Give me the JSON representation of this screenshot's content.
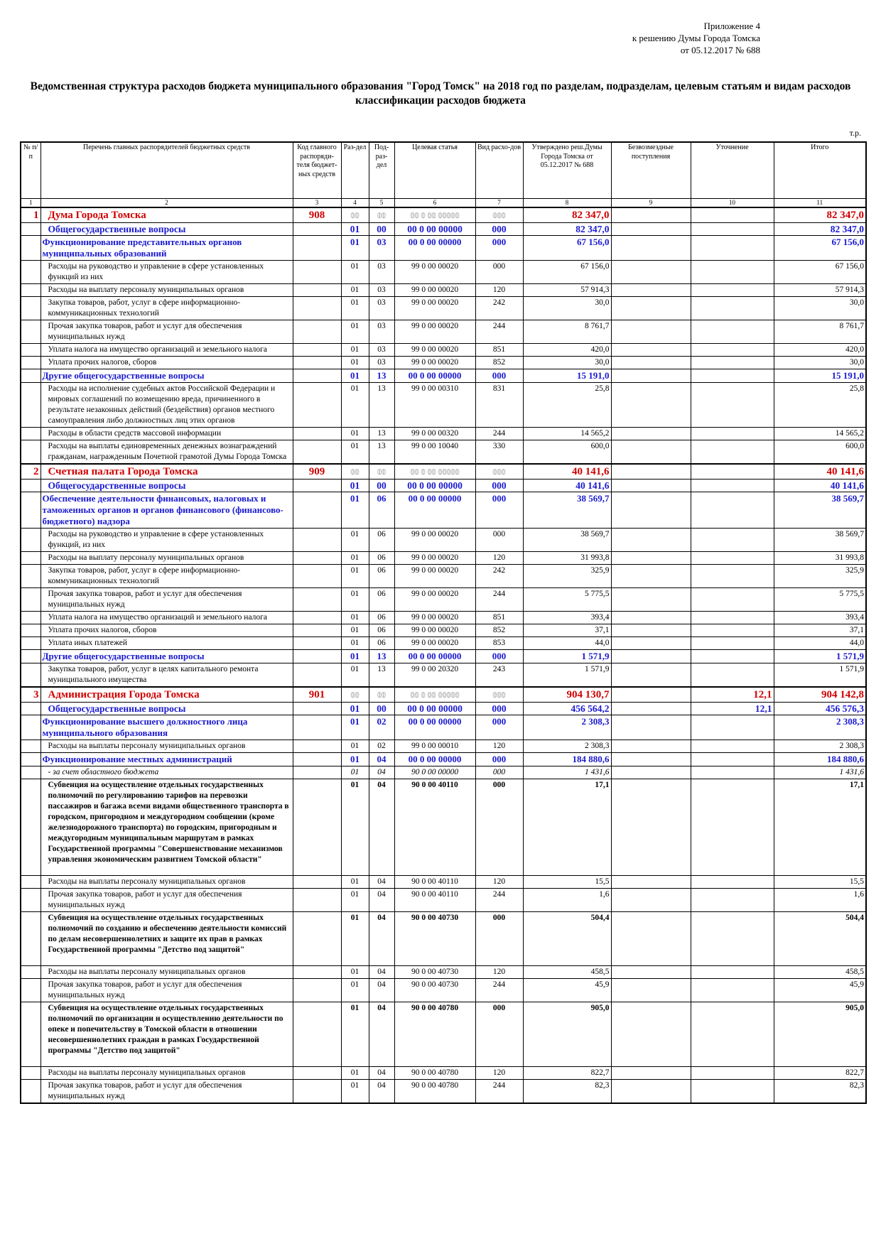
{
  "header": {
    "appendix": [
      "Приложение 4",
      "к решению Думы Города Томска",
      "от  05.12.2017 № 688"
    ],
    "title": "Ведомственная структура расходов бюджета муниципального образования \"Город Томск\" на 2018 год по разделам, подразделам, целевым статьям и видам расходов классификации расходов бюджета",
    "unit": "т.р."
  },
  "table": {
    "columns": [
      "№ п/п",
      "Перечень главных распорядителей бюджетных средств",
      "Код главного распоряди-теля бюджет-ных средств",
      "Раз-дел",
      "Под-раз-дел",
      "Целевая статья",
      "Вид расхо-дов",
      "Утверждено реш.Думы Города Томска от 05.12.2017 № 688",
      "Безвозмездные поступления",
      "Уточнение",
      "Итого"
    ],
    "column_numbers": [
      "1",
      "2",
      "3",
      "4",
      "5",
      "6",
      "7",
      "8",
      "9",
      "10",
      "11"
    ],
    "rows": [
      {
        "style": "dept",
        "cells": [
          "1",
          "Дума Города Томска",
          "908",
          "00",
          "00",
          "00 0 00 00000",
          "000",
          "82 347,0",
          null,
          null,
          "82 347,0"
        ]
      },
      {
        "style": "section",
        "cells": [
          null,
          "Общегосударственные вопросы",
          null,
          "01",
          "00",
          "00 0 00 00000",
          "000",
          "82 347,0",
          null,
          null,
          "82 347,0"
        ]
      },
      {
        "style": "sub",
        "cells": [
          null,
          "Функционирование представительных органов муниципальных образований",
          null,
          "01",
          "03",
          "00 0 00 00000",
          "000",
          "67 156,0",
          null,
          null,
          "67 156,0"
        ]
      },
      {
        "style": "normal",
        "cells": [
          null,
          "Расходы на руководство и управление в сфере установленных функций из них",
          null,
          "01",
          "03",
          "99 0 00 00020",
          "000",
          "67 156,0",
          null,
          null,
          "67 156,0"
        ]
      },
      {
        "style": "normal",
        "cells": [
          null,
          "Расходы на выплату персоналу муниципальных органов",
          null,
          "01",
          "03",
          "99 0 00 00020",
          "120",
          "57 914,3",
          null,
          null,
          "57 914,3"
        ]
      },
      {
        "style": "normal",
        "cells": [
          null,
          "Закупка товаров, работ, услуг в сфере информационно-коммуникационных технологий",
          null,
          "01",
          "03",
          "99 0 00 00020",
          "242",
          "30,0",
          null,
          null,
          "30,0"
        ]
      },
      {
        "style": "normal",
        "cells": [
          null,
          "Прочая закупка товаров, работ и услуг для обеспечения муниципальных нужд",
          null,
          "01",
          "03",
          "99 0 00 00020",
          "244",
          "8 761,7",
          null,
          null,
          "8 761,7"
        ]
      },
      {
        "style": "normal",
        "cells": [
          null,
          "Уплата налога на имущество организаций и земельного налога",
          null,
          "01",
          "03",
          "99 0 00 00020",
          "851",
          "420,0",
          null,
          null,
          "420,0"
        ]
      },
      {
        "style": "normal",
        "cells": [
          null,
          "Уплата прочих налогов, сборов",
          null,
          "01",
          "03",
          "99 0 00 00020",
          "852",
          "30,0",
          null,
          null,
          "30,0"
        ]
      },
      {
        "style": "sub",
        "cells": [
          null,
          "Другие общегосударственные вопросы",
          null,
          "01",
          "13",
          "00 0 00 00000",
          "000",
          "15 191,0",
          null,
          null,
          "15 191,0"
        ]
      },
      {
        "style": "normal",
        "cells": [
          null,
          "Расходы на исполнение судебных актов Российской Федерации и мировых соглашений по возмещению вреда, причиненного в результате незаконных действий (бездействия) органов местного самоуправления либо должностных лиц этих органов",
          null,
          "01",
          "13",
          "99 0 00 00310",
          "831",
          "25,8",
          null,
          null,
          "25,8"
        ]
      },
      {
        "style": "normal",
        "cells": [
          null,
          "Расходы в области средств массовой информации",
          null,
          "01",
          "13",
          "99 0 00 00320",
          "244",
          "14 565,2",
          null,
          null,
          "14 565,2"
        ]
      },
      {
        "style": "normal",
        "cells": [
          null,
          "Расходы на выплаты единовременных денежных вознаграждений гражданам, награжденным Почетной грамотой Думы Города Томска",
          null,
          "01",
          "13",
          "99 0 00 10040",
          "330",
          "600,0",
          null,
          null,
          "600,0"
        ]
      },
      {
        "style": "dept",
        "cells": [
          "2",
          "Счетная палата Города Томска",
          "909",
          "00",
          "00",
          "00 0 00 00000",
          "000",
          "40 141,6",
          null,
          null,
          "40 141,6"
        ]
      },
      {
        "style": "section",
        "cells": [
          null,
          "Общегосударственные вопросы",
          null,
          "01",
          "00",
          "00 0 00 00000",
          "000",
          "40 141,6",
          null,
          null,
          "40 141,6"
        ]
      },
      {
        "style": "sub",
        "cells": [
          null,
          "Обеспечение деятельности финансовых, налоговых и таможенных органов и органов финансового (финансово-бюджетного) надзора",
          null,
          "01",
          "06",
          "00 0 00 00000",
          "000",
          "38 569,7",
          null,
          null,
          "38 569,7"
        ]
      },
      {
        "style": "normal",
        "cells": [
          null,
          "Расходы на руководство и управление в сфере установленных функций, из них",
          null,
          "01",
          "06",
          "99 0 00 00020",
          "000",
          "38 569,7",
          null,
          null,
          "38 569,7"
        ]
      },
      {
        "style": "normal",
        "cells": [
          null,
          "Расходы на выплату персоналу муниципальных органов",
          null,
          "01",
          "06",
          "99 0 00 00020",
          "120",
          "31 993,8",
          null,
          null,
          "31 993,8"
        ]
      },
      {
        "style": "normal",
        "cells": [
          null,
          "Закупка товаров, работ, услуг в сфере информационно-коммуникационных технологий",
          null,
          "01",
          "06",
          "99 0 00 00020",
          "242",
          "325,9",
          null,
          null,
          "325,9"
        ]
      },
      {
        "style": "normal",
        "cells": [
          null,
          "Прочая закупка товаров, работ и услуг для обеспечения муниципальных нужд",
          null,
          "01",
          "06",
          "99 0 00 00020",
          "244",
          "5 775,5",
          null,
          null,
          "5 775,5"
        ]
      },
      {
        "style": "normal",
        "cells": [
          null,
          "Уплата налога на имущество организаций и земельного налога",
          null,
          "01",
          "06",
          "99 0 00 00020",
          "851",
          "393,4",
          null,
          null,
          "393,4"
        ]
      },
      {
        "style": "normal",
        "cells": [
          null,
          "Уплата прочих налогов, сборов",
          null,
          "01",
          "06",
          "99 0 00 00020",
          "852",
          "37,1",
          null,
          null,
          "37,1"
        ]
      },
      {
        "style": "normal",
        "cells": [
          null,
          "Уплата иных платежей",
          null,
          "01",
          "06",
          "99 0 00 00020",
          "853",
          "44,0",
          null,
          null,
          "44,0"
        ]
      },
      {
        "style": "sub",
        "cells": [
          null,
          "Другие общегосударственные вопросы",
          null,
          "01",
          "13",
          "00 0 00 00000",
          "000",
          "1 571,9",
          null,
          null,
          "1 571,9"
        ]
      },
      {
        "style": "normal",
        "cells": [
          null,
          "Закупка товаров, работ, услуг в целях капитального ремонта муниципального имущества",
          null,
          "01",
          "13",
          "99 0 00 20320",
          "243",
          "1 571,9",
          null,
          null,
          "1 571,9"
        ]
      },
      {
        "style": "dept",
        "cells": [
          "3",
          "Администрация Города Томска",
          "901",
          "00",
          "00",
          "00 0 00 00000",
          "000",
          "904 130,7",
          null,
          "12,1",
          "904 142,8"
        ]
      },
      {
        "style": "section",
        "cells": [
          null,
          "Общегосударственные вопросы",
          null,
          "01",
          "00",
          "00 0 00 00000",
          "000",
          "456 564,2",
          null,
          "12,1",
          "456 576,3"
        ]
      },
      {
        "style": "sub",
        "cells": [
          null,
          "Функционирование высшего должностного лица муниципального образования",
          null,
          "01",
          "02",
          "00 0 00 00000",
          "000",
          "2 308,3",
          null,
          null,
          "2 308,3"
        ]
      },
      {
        "style": "normal",
        "cells": [
          null,
          "Расходы на выплаты персоналу муниципальных органов",
          null,
          "01",
          "02",
          "99 0 00 00010",
          "120",
          "2 308,3",
          null,
          null,
          "2 308,3"
        ]
      },
      {
        "style": "sub",
        "cells": [
          null,
          "Функционирование местных администраций",
          null,
          "01",
          "04",
          "00 0 00 00000",
          "000",
          "184 880,6",
          null,
          null,
          "184 880,6"
        ]
      },
      {
        "style": "italic",
        "cells": [
          null,
          "- за счет областного бюджета",
          null,
          "01",
          "04",
          "90 0 00 00000",
          "000",
          "1 431,6",
          null,
          null,
          "1 431,6"
        ]
      },
      {
        "style": "bold",
        "cells": [
          null,
          "Субвенция на осуществление отдельных государственных полномочий по регулированию тарифов на перевозки пассажиров и багажа всеми видами общественного транспорта в городском, пригородном и междугородном сообщении (кроме железнодорожного транспорта) по городским, пригородным и междугородным муниципальным маршрутам в рамках Государственной программы \"Совершенствование механизмов управления экономическим развитием Томской области\"",
          null,
          "01",
          "04",
          "90 0 00 40110",
          "000",
          "17,1",
          null,
          null,
          "17,1"
        ]
      },
      {
        "style": "normal",
        "cells": [
          null,
          "Расходы на выплаты персоналу муниципальных органов",
          null,
          "01",
          "04",
          "90 0 00 40110",
          "120",
          "15,5",
          null,
          null,
          "15,5"
        ]
      },
      {
        "style": "normal",
        "cells": [
          null,
          "Прочая закупка товаров, работ и услуг для обеспечения муниципальных нужд",
          null,
          "01",
          "04",
          "90 0 00 40110",
          "244",
          "1,6",
          null,
          null,
          "1,6"
        ]
      },
      {
        "style": "bold",
        "cells": [
          null,
          "Субвенция на осуществление отдельных государственных полномочий по созданию и обеспечению деятельности комиссий по делам несовершеннолетних и защите их прав в рамках Государственной программы \"Детство под защитой\"",
          null,
          "01",
          "04",
          "90 0 00 40730",
          "000",
          "504,4",
          null,
          null,
          "504,4"
        ]
      },
      {
        "style": "normal",
        "cells": [
          null,
          "Расходы на выплаты персоналу муниципальных органов",
          null,
          "01",
          "04",
          "90 0 00 40730",
          "120",
          "458,5",
          null,
          null,
          "458,5"
        ]
      },
      {
        "style": "normal",
        "cells": [
          null,
          "Прочая закупка товаров, работ и услуг для обеспечения муниципальных нужд",
          null,
          "01",
          "04",
          "90 0 00 40730",
          "244",
          "45,9",
          null,
          null,
          "45,9"
        ]
      },
      {
        "style": "bold",
        "cells": [
          null,
          "Субвенция на осуществление отдельных государственных полномочий по организации и осуществлению деятельности по опеке и попечительству в Томской области в отношении несовершеннолетних граждан в рамках Государственной программы \"Детство под защитой\"",
          null,
          "01",
          "04",
          "90 0 00 40780",
          "000",
          "905,0",
          null,
          null,
          "905,0"
        ]
      },
      {
        "style": "normal",
        "cells": [
          null,
          "Расходы на выплаты персоналу муниципальных органов",
          null,
          "01",
          "04",
          "90 0 00 40780",
          "120",
          "822,7",
          null,
          null,
          "822,7"
        ]
      },
      {
        "style": "normal",
        "cells": [
          null,
          "Прочая закупка товаров, работ и услуг для обеспечения муниципальных нужд",
          null,
          "01",
          "04",
          "90 0 00 40780",
          "244",
          "82,3",
          null,
          null,
          "82,3"
        ]
      }
    ]
  }
}
